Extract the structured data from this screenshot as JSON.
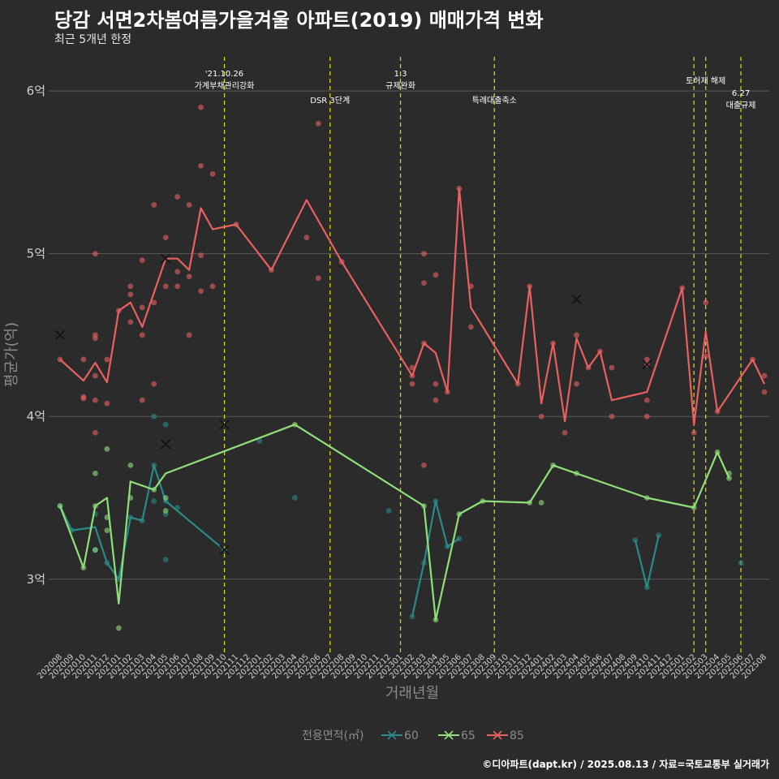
{
  "header": {
    "title": "당감 서면2차봄여름가을겨울 아파트(2019) 매매가격 변화",
    "subtitle": "최근 5개년 한정"
  },
  "caption": "©디아파트(dapt.kr) / 2025.08.13 / 자료=국토교통부 실거래가",
  "colors": {
    "background": "#2b2b2b",
    "grid": "#5a5a5a",
    "vline": "#d4d400",
    "s60": "#2a8a87",
    "s65": "#90e07a",
    "s85": "#e8605f"
  },
  "chart_data": {
    "type": "line",
    "xlabel": "거래년월",
    "ylabel": "평균가(억)",
    "ylim": [
      2.55,
      6.25
    ],
    "yticks": [
      {
        "v": 3,
        "label": "3억"
      },
      {
        "v": 4,
        "label": "4억"
      },
      {
        "v": 5,
        "label": "5억"
      },
      {
        "v": 6,
        "label": "6억"
      }
    ],
    "x_categories": [
      "202008",
      "202009",
      "202010",
      "202011",
      "202012",
      "202101",
      "202102",
      "202103",
      "202104",
      "202105",
      "202106",
      "202107",
      "202108",
      "202109",
      "202110",
      "202111",
      "202112",
      "202201",
      "202202",
      "202203",
      "202204",
      "202205",
      "202206",
      "202207",
      "202208",
      "202209",
      "202210",
      "202211",
      "202212",
      "202301",
      "202302",
      "202303",
      "202304",
      "202305",
      "202306",
      "202307",
      "202308",
      "202309",
      "202310",
      "202311",
      "202312",
      "202401",
      "202402",
      "202403",
      "202404",
      "202405",
      "202406",
      "202407",
      "202408",
      "202409",
      "202410",
      "202411",
      "202412",
      "202501",
      "202502",
      "202503",
      "202504",
      "202505",
      "202506",
      "202507",
      "202508"
    ],
    "legend": {
      "title": "전용면적(㎡)",
      "position": "bottom"
    },
    "annotations": [
      {
        "x": 14,
        "lines": [
          "'21.10.26",
          "가계부채관리강화"
        ],
        "level": 1
      },
      {
        "x": 23,
        "lines": [
          "DSR 3단계"
        ],
        "level": 2
      },
      {
        "x": 29,
        "lines": [
          "1.3",
          "규제완화"
        ],
        "level": 1
      },
      {
        "x": 37,
        "lines": [
          "특례대출축소"
        ],
        "level": 2
      },
      {
        "x": 54,
        "lines": [],
        "level": 0
      },
      {
        "x": 55,
        "lines": [
          "토허제 해제"
        ],
        "level": 1.5
      },
      {
        "x": 58,
        "lines": [
          "6.27",
          "대출규제"
        ],
        "level": 2.5
      }
    ],
    "series": [
      {
        "name": "60",
        "color": "#2a8a87",
        "segments": [
          [
            [
              0,
              3.45
            ],
            [
              1,
              3.3
            ],
            [
              3,
              3.32
            ],
            [
              4,
              3.1
            ],
            [
              5,
              3.0
            ],
            [
              6,
              3.38
            ],
            [
              7,
              3.36
            ],
            [
              8,
              3.7
            ],
            [
              9,
              3.48
            ],
            [
              14,
              3.18
            ]
          ],
          [
            [
              30,
              2.77
            ],
            [
              31,
              3.1
            ],
            [
              32,
              3.48
            ],
            [
              33,
              3.2
            ],
            [
              34,
              3.25
            ]
          ],
          [
            [
              49,
              3.24
            ],
            [
              50,
              2.95
            ],
            [
              51,
              3.27
            ]
          ]
        ],
        "points": [
          [
            0,
            3.45
          ],
          [
            1,
            3.3
          ],
          [
            3,
            3.4
          ],
          [
            3,
            3.18
          ],
          [
            4,
            3.1
          ],
          [
            5,
            3.0
          ],
          [
            6,
            3.38
          ],
          [
            7,
            3.36
          ],
          [
            8,
            3.7
          ],
          [
            8,
            4.0
          ],
          [
            8,
            3.48
          ],
          [
            9,
            3.95
          ],
          [
            9,
            3.48
          ],
          [
            9,
            3.4
          ],
          [
            9,
            3.12
          ],
          [
            10,
            3.44
          ],
          [
            14,
            3.18
          ],
          [
            17,
            3.85
          ],
          [
            20,
            3.5
          ],
          [
            28,
            3.42
          ],
          [
            30,
            2.77
          ],
          [
            31,
            3.1
          ],
          [
            32,
            3.48
          ],
          [
            33,
            3.2
          ],
          [
            34,
            3.25
          ],
          [
            49,
            3.24
          ],
          [
            50,
            2.95
          ],
          [
            51,
            3.27
          ],
          [
            58,
            3.1
          ]
        ],
        "crosses": [
          [
            9,
            3.83
          ],
          [
            14,
            3.18
          ]
        ]
      },
      {
        "name": "65",
        "color": "#90e07a",
        "segments": [
          [
            [
              0,
              3.45
            ],
            [
              2,
              3.07
            ],
            [
              3,
              3.45
            ],
            [
              4,
              3.5
            ],
            [
              5,
              2.85
            ],
            [
              6,
              3.6
            ],
            [
              8,
              3.55
            ],
            [
              9,
              3.65
            ],
            [
              20,
              3.95
            ],
            [
              31,
              3.45
            ],
            [
              32,
              2.75
            ],
            [
              34,
              3.4
            ],
            [
              36,
              3.48
            ],
            [
              40,
              3.47
            ],
            [
              42,
              3.7
            ],
            [
              44,
              3.65
            ],
            [
              50,
              3.5
            ],
            [
              54,
              3.44
            ],
            [
              56,
              3.78
            ],
            [
              57,
              3.62
            ]
          ]
        ],
        "points": [
          [
            0,
            3.45
          ],
          [
            2,
            3.07
          ],
          [
            3,
            3.65
          ],
          [
            3,
            3.45
          ],
          [
            3,
            3.18
          ],
          [
            4,
            3.8
          ],
          [
            4,
            3.38
          ],
          [
            4,
            3.3
          ],
          [
            5,
            2.7
          ],
          [
            6,
            3.7
          ],
          [
            6,
            3.5
          ],
          [
            8,
            3.55
          ],
          [
            9,
            3.5
          ],
          [
            9,
            3.42
          ],
          [
            20,
            3.95
          ],
          [
            31,
            3.45
          ],
          [
            32,
            2.75
          ],
          [
            34,
            3.4
          ],
          [
            36,
            3.48
          ],
          [
            40,
            3.47
          ],
          [
            41,
            3.47
          ],
          [
            42,
            3.7
          ],
          [
            44,
            3.65
          ],
          [
            50,
            3.5
          ],
          [
            54,
            3.44
          ],
          [
            56,
            3.78
          ],
          [
            57,
            3.62
          ],
          [
            57,
            3.65
          ]
        ],
        "crosses": [
          [
            9,
            3.83
          ],
          [
            14,
            3.95
          ]
        ]
      },
      {
        "name": "85",
        "color": "#e8605f",
        "segments": [
          [
            [
              0,
              4.35
            ],
            [
              2,
              4.22
            ],
            [
              3,
              4.33
            ],
            [
              4,
              4.21
            ],
            [
              5,
              4.65
            ],
            [
              6,
              4.7
            ],
            [
              7,
              4.55
            ],
            [
              9,
              4.97
            ],
            [
              10,
              4.97
            ],
            [
              11,
              4.9
            ],
            [
              12,
              5.28
            ],
            [
              13,
              5.15
            ],
            [
              15,
              5.18
            ],
            [
              18,
              4.9
            ],
            [
              21,
              5.33
            ],
            [
              24,
              4.95
            ],
            [
              30,
              4.25
            ],
            [
              31,
              4.45
            ],
            [
              32,
              4.39
            ],
            [
              33,
              4.15
            ],
            [
              34,
              5.4
            ],
            [
              35,
              4.67
            ],
            [
              39,
              4.2
            ],
            [
              40,
              4.8
            ],
            [
              41,
              4.08
            ],
            [
              42,
              4.45
            ],
            [
              43,
              3.97
            ],
            [
              44,
              4.48
            ],
            [
              45,
              4.3
            ],
            [
              46,
              4.4
            ],
            [
              47,
              4.1
            ],
            [
              50,
              4.15
            ],
            [
              53,
              4.79
            ],
            [
              54,
              3.95
            ],
            [
              55,
              4.52
            ],
            [
              56,
              4.03
            ],
            [
              59,
              4.35
            ],
            [
              60,
              4.2
            ]
          ]
        ],
        "points": [
          [
            0,
            4.35
          ],
          [
            2,
            4.35
          ],
          [
            2,
            4.12
          ],
          [
            2,
            4.11
          ],
          [
            3,
            5.0
          ],
          [
            3,
            4.5
          ],
          [
            3,
            4.48
          ],
          [
            3,
            4.25
          ],
          [
            3,
            4.1
          ],
          [
            3,
            3.9
          ],
          [
            4,
            4.35
          ],
          [
            4,
            4.08
          ],
          [
            5,
            4.65
          ],
          [
            6,
            4.8
          ],
          [
            6,
            4.75
          ],
          [
            6,
            4.58
          ],
          [
            7,
            4.96
          ],
          [
            7,
            4.67
          ],
          [
            7,
            4.5
          ],
          [
            7,
            4.1
          ],
          [
            8,
            5.3
          ],
          [
            8,
            4.7
          ],
          [
            8,
            4.2
          ],
          [
            9,
            5.1
          ],
          [
            9,
            4.8
          ],
          [
            10,
            5.35
          ],
          [
            10,
            4.89
          ],
          [
            10,
            4.8
          ],
          [
            11,
            5.3
          ],
          [
            11,
            4.86
          ],
          [
            11,
            4.5
          ],
          [
            12,
            5.9
          ],
          [
            12,
            5.54
          ],
          [
            12,
            4.99
          ],
          [
            12,
            4.77
          ],
          [
            13,
            5.49
          ],
          [
            13,
            4.8
          ],
          [
            15,
            5.18
          ],
          [
            18,
            4.9
          ],
          [
            21,
            5.1
          ],
          [
            22,
            5.8
          ],
          [
            22,
            4.85
          ],
          [
            24,
            4.95
          ],
          [
            30,
            4.3
          ],
          [
            30,
            4.25
          ],
          [
            30,
            4.2
          ],
          [
            31,
            5.0
          ],
          [
            31,
            4.82
          ],
          [
            31,
            4.45
          ],
          [
            31,
            3.7
          ],
          [
            32,
            4.87
          ],
          [
            32,
            4.2
          ],
          [
            32,
            4.1
          ],
          [
            33,
            4.15
          ],
          [
            34,
            5.4
          ],
          [
            35,
            4.8
          ],
          [
            35,
            4.55
          ],
          [
            39,
            4.2
          ],
          [
            40,
            4.8
          ],
          [
            41,
            4.0
          ],
          [
            42,
            4.45
          ],
          [
            43,
            3.9
          ],
          [
            44,
            4.5
          ],
          [
            44,
            4.2
          ],
          [
            45,
            4.3
          ],
          [
            46,
            4.4
          ],
          [
            47,
            4.3
          ],
          [
            47,
            4.0
          ],
          [
            50,
            4.35
          ],
          [
            50,
            4.32
          ],
          [
            50,
            4.1
          ],
          [
            50,
            4.0
          ],
          [
            53,
            4.79
          ],
          [
            54,
            3.9
          ],
          [
            55,
            4.7
          ],
          [
            55,
            4.37
          ],
          [
            56,
            4.03
          ],
          [
            59,
            4.35
          ],
          [
            60,
            4.25
          ],
          [
            60,
            4.15
          ]
        ],
        "crosses": [
          [
            0,
            4.5
          ],
          [
            9,
            4.97
          ],
          [
            44,
            4.72
          ],
          [
            50,
            4.32
          ]
        ]
      }
    ]
  }
}
